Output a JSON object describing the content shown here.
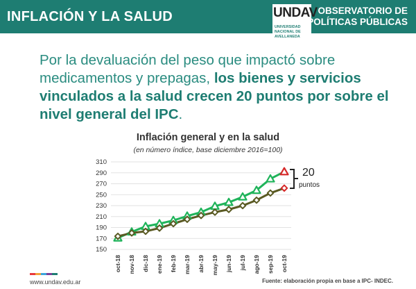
{
  "header": {
    "title": "INFLACIÓN Y LA SALUD",
    "right_line1": "OBSERVATORIO DE",
    "right_line2": "POLÍTICAS PÚBLICAS"
  },
  "logo": {
    "mark": "UNDAV",
    "line1": "UNIVERSIDAD",
    "line2": "NACIONAL DE",
    "line3": "AVELLANEDA"
  },
  "headline": {
    "normal": "Por la devaluación del peso que impactó sobre medicamentos y prepagas,",
    "bold": "los bienes y servicios vinculados a la salud crecen 20 puntos por sobre el nivel general del IPC",
    "tail": "."
  },
  "annotation": {
    "value": "20",
    "unit": "puntos"
  },
  "footer": {
    "url": "www.undav.edu.ar",
    "source": "Fuente: elaboración propia en base a IPC- INDEC."
  },
  "colors": {
    "brand": "#1e7d72",
    "series_salud": "#1fb35a",
    "series_general": "#5a5a23",
    "marker_last": "#d62828"
  },
  "chart_data": {
    "type": "line",
    "title": "Inflación general y en la salud",
    "subtitle": "(en número índice, base diciembre 2016=100)",
    "categories": [
      "oct-18",
      "nov-18",
      "dic-18",
      "ene-19",
      "feb-19",
      "mar-19",
      "abr-19",
      "may-19",
      "jun-19",
      "jul-19",
      "ago-19",
      "sep-19",
      "oct-19"
    ],
    "series": [
      {
        "id": "salud",
        "values": [
          171,
          182,
          192,
          197,
          203,
          211,
          218,
          229,
          236,
          246,
          258,
          279,
          292
        ]
      },
      {
        "id": "general",
        "values": [
          174,
          180,
          183,
          189,
          197,
          205,
          212,
          218,
          223,
          230,
          240,
          253,
          262
        ]
      }
    ],
    "ylim": [
      150,
      310
    ],
    "yticks": [
      150,
      170,
      190,
      210,
      230,
      250,
      270,
      290,
      310
    ],
    "grid": true,
    "legend": "none"
  }
}
